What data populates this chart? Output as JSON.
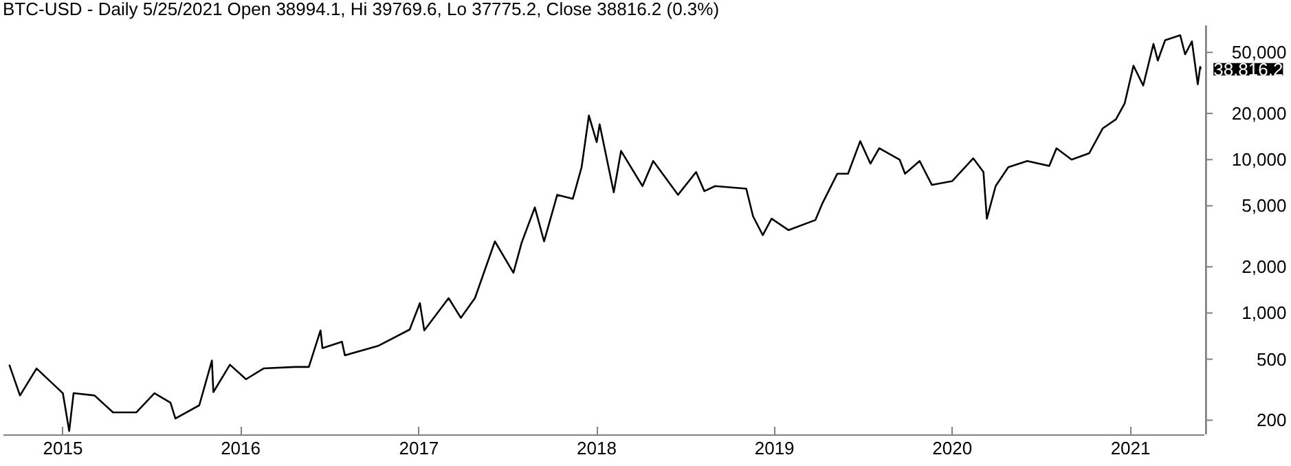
{
  "chart_data": {
    "type": "line",
    "title": "BTC-USD - Daily 5/25/2021 Open 38994.1, Hi 39769.6, Lo 37775.2, Close 38816.2 (0.3%)",
    "x": [
      "2014-09-13",
      "2014-10-05",
      "2014-11-08",
      "2015-01-01",
      "2015-01-14",
      "2015-01-23",
      "2015-03-07",
      "2015-04-14",
      "2015-06-01",
      "2015-07-08",
      "2015-08-10",
      "2015-08-20",
      "2015-10-08",
      "2015-11-03",
      "2015-11-06",
      "2015-12-10",
      "2016-01-12",
      "2016-02-17",
      "2016-04-22",
      "2016-05-20",
      "2016-06-13",
      "2016-06-17",
      "2016-07-27",
      "2016-08-02",
      "2016-10-09",
      "2016-12-13",
      "2017-01-03",
      "2017-01-12",
      "2017-03-03",
      "2017-03-28",
      "2017-04-26",
      "2017-06-06",
      "2017-07-14",
      "2017-07-31",
      "2017-08-27",
      "2017-09-15",
      "2017-10-12",
      "2017-11-13",
      "2017-12-01",
      "2017-12-16",
      "2018-01-01",
      "2018-01-07",
      "2018-02-05",
      "2018-02-20",
      "2018-04-05",
      "2018-04-27",
      "2018-06-17",
      "2018-07-24",
      "2018-08-10",
      "2018-09-01",
      "2018-11-04",
      "2018-11-18",
      "2018-12-08",
      "2018-12-26",
      "2019-01-30",
      "2019-03-26",
      "2019-04-09",
      "2019-05-10",
      "2019-06-01",
      "2019-06-26",
      "2019-07-17",
      "2019-08-04",
      "2019-09-15",
      "2019-09-26",
      "2019-10-26",
      "2019-11-20",
      "2020-01-01",
      "2020-02-13",
      "2020-03-05",
      "2020-03-12",
      "2020-03-30",
      "2020-04-25",
      "2020-06-03",
      "2020-07-18",
      "2020-08-02",
      "2020-09-02",
      "2020-10-08",
      "2020-11-05",
      "2020-12-02",
      "2020-12-20",
      "2021-01-07",
      "2021-01-27",
      "2021-02-17",
      "2021-02-26",
      "2021-03-13",
      "2021-04-13",
      "2021-04-23",
      "2021-05-07",
      "2021-05-19",
      "2021-05-24",
      "2021-05-25"
    ],
    "series": [
      {
        "color": "#000000",
        "values": [
          460,
          290,
          435,
          300,
          170,
          300,
          290,
          225,
          225,
          300,
          260,
          205,
          250,
          490,
          305,
          460,
          370,
          435,
          445,
          445,
          770,
          590,
          650,
          530,
          610,
          780,
          1160,
          770,
          1250,
          930,
          1250,
          2930,
          1830,
          2880,
          4880,
          2930,
          5900,
          5560,
          8930,
          19400,
          13000,
          17000,
          6120,
          11400,
          6720,
          9800,
          5900,
          8300,
          6230,
          6720,
          6470,
          4270,
          3220,
          4120,
          3470,
          4040,
          5160,
          8100,
          8100,
          13200,
          9420,
          11860,
          10000,
          8100,
          9800,
          6850,
          7250,
          10200,
          8300,
          4120,
          6720,
          8930,
          9800,
          9100,
          11860,
          10000,
          11000,
          16000,
          18300,
          23300,
          41000,
          30400,
          56800,
          44300,
          60100,
          64700,
          48600,
          59000,
          31000,
          40300,
          38816.2
        ]
      }
    ],
    "log": "y",
    "xlim": [
      "2014-09-01",
      "2021-06-03"
    ],
    "xticks": [
      {
        "value": "2015-01-01",
        "label": "2015"
      },
      {
        "value": "2016-01-01",
        "label": "2016"
      },
      {
        "value": "2017-01-01",
        "label": "2017"
      },
      {
        "value": "2018-01-01",
        "label": "2018"
      },
      {
        "value": "2019-01-01",
        "label": "2019"
      },
      {
        "value": "2020-01-01",
        "label": "2020"
      },
      {
        "value": "2021-01-01",
        "label": "2021"
      }
    ],
    "ylim": [
      160,
      75000
    ],
    "yticks": [
      {
        "value": 200,
        "label": "200"
      },
      {
        "value": 500,
        "label": "500"
      },
      {
        "value": 1000,
        "label": "1,000"
      },
      {
        "value": 2000,
        "label": "2,000"
      },
      {
        "value": 5000,
        "label": "5,000"
      },
      {
        "value": 10000,
        "label": "10,000"
      },
      {
        "value": 20000,
        "label": "20,000"
      },
      {
        "value": 50000,
        "label": "50,000"
      }
    ],
    "grid": false,
    "annotations": [
      "38,816.2"
    ]
  }
}
